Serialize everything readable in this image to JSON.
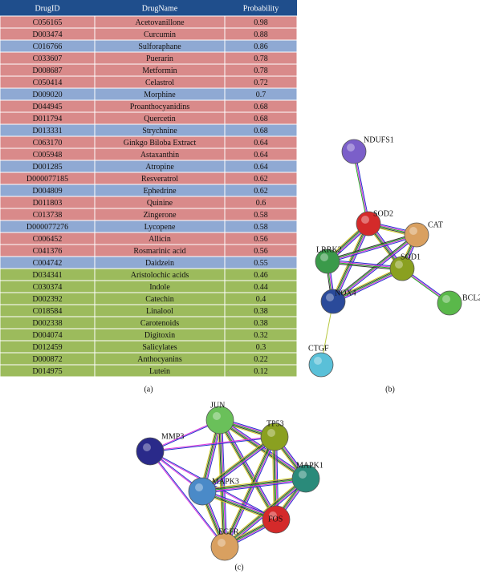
{
  "table": {
    "header": [
      "DrugID",
      "DrugName",
      "Probability"
    ],
    "header_color": "#1f4e8c",
    "rows": [
      [
        "C056165",
        "Acetovanillone",
        0.98,
        "#d98a8a"
      ],
      [
        "D003474",
        "Curcumin",
        0.88,
        "#d98a8a"
      ],
      [
        "C016766",
        "Sulforaphane",
        0.86,
        "#8fa9d3"
      ],
      [
        "C033607",
        "Puerarin",
        0.78,
        "#d98a8a"
      ],
      [
        "D008687",
        "Metformin",
        0.78,
        "#d98a8a"
      ],
      [
        "C050414",
        "Celastrol",
        0.72,
        "#d98a8a"
      ],
      [
        "D009020",
        "Morphine",
        0.7,
        "#8fa9d3"
      ],
      [
        "D044945",
        "Proanthocyanidins",
        0.68,
        "#d98a8a"
      ],
      [
        "D011794",
        "Quercetin",
        0.68,
        "#d98a8a"
      ],
      [
        "D013331",
        "Strychnine",
        0.68,
        "#8fa9d3"
      ],
      [
        "C063170",
        "Ginkgo Biloba Extract",
        0.64,
        "#d98a8a"
      ],
      [
        "C005948",
        "Astaxanthin",
        0.64,
        "#d98a8a"
      ],
      [
        "D001285",
        "Atropine",
        0.64,
        "#8fa9d3"
      ],
      [
        "D000077185",
        "Resveratrol",
        0.62,
        "#d98a8a"
      ],
      [
        "D004809",
        "Ephedrine",
        0.62,
        "#8fa9d3"
      ],
      [
        "D011803",
        "Quinine",
        0.6,
        "#d98a8a"
      ],
      [
        "C013738",
        "Zingerone",
        0.58,
        "#d98a8a"
      ],
      [
        "D000077276",
        "Lycopene",
        0.58,
        "#8fa9d3"
      ],
      [
        "C006452",
        "Allicin",
        0.56,
        "#d98a8a"
      ],
      [
        "C041376",
        "Rosmarinic acid",
        0.56,
        "#d98a8a"
      ],
      [
        "C004742",
        "Daidzein",
        0.55,
        "#8fa9d3"
      ],
      [
        "D034341",
        "Aristolochic acids",
        0.46,
        "#9cbb5c"
      ],
      [
        "C030374",
        "Indole",
        0.44,
        "#9cbb5c"
      ],
      [
        "D002392",
        "Catechin",
        0.4,
        "#9cbb5c"
      ],
      [
        "C018584",
        "Linalool",
        0.38,
        "#9cbb5c"
      ],
      [
        "D002338",
        "Carotenoids",
        0.38,
        "#9cbb5c"
      ],
      [
        "D004074",
        "Digitoxin",
        0.32,
        "#9cbb5c"
      ],
      [
        "D012459",
        "Salicylates",
        0.3,
        "#9cbb5c"
      ],
      [
        "D000872",
        "Anthocyanins",
        0.22,
        "#9cbb5c"
      ],
      [
        "D014975",
        "Lutein",
        0.12,
        "#9cbb5c"
      ]
    ]
  },
  "network_b": {
    "nodes": [
      {
        "label": "NDUFS1",
        "color": "#7b5fc9"
      },
      {
        "label": "SOD2",
        "color": "#d42a2a"
      },
      {
        "label": "CAT",
        "color": "#d9a060"
      },
      {
        "label": "LRRK2",
        "color": "#3a9a4a"
      },
      {
        "label": "SOD1",
        "color": "#8aa020"
      },
      {
        "label": "NOX4",
        "color": "#2a4a9a"
      },
      {
        "label": "BCL2",
        "color": "#5ab84a"
      },
      {
        "label": "CTGF",
        "color": "#5ac0d8"
      }
    ]
  },
  "network_c": {
    "nodes": [
      {
        "label": "JUN",
        "color": "#6ac05a"
      },
      {
        "label": "TP53",
        "color": "#8aa020"
      },
      {
        "label": "MMP3",
        "color": "#2a2a8a"
      },
      {
        "label": "MAPK1",
        "color": "#2a8a7a"
      },
      {
        "label": "MAPK3",
        "color": "#4a8ac8"
      },
      {
        "label": "FOS",
        "color": "#d42a2a"
      },
      {
        "label": "EGFR",
        "color": "#d9a060"
      }
    ]
  },
  "panel_labels": [
    "(a)",
    "(b)",
    "(c)"
  ]
}
